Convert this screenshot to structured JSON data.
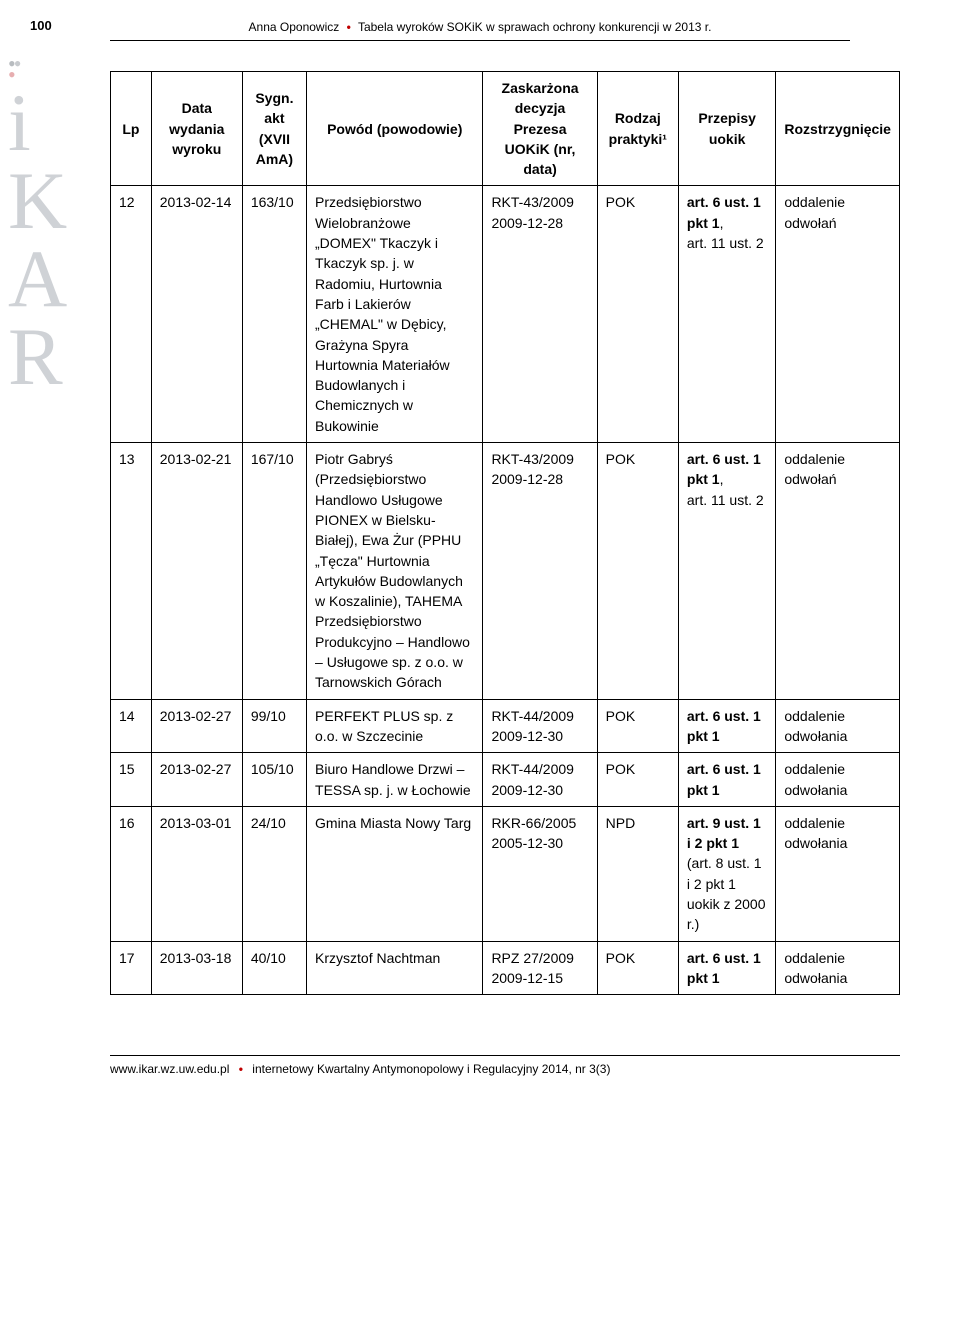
{
  "page_number": "100",
  "header_author": "Anna Oponowicz",
  "header_title": "Tabela wyroków SOKiK w sprawach ochrony konkurencji w 2013 r.",
  "footer_site": "www.ikar.wz.uw.edu.pl",
  "footer_journal": "internetowy Kwartalny Antymonopolowy i Regulacyjny 2014, nr 3(3)",
  "colors": {
    "accent_red": "#c00000",
    "logo_grey": "#cfd2d6",
    "text": "#000000",
    "background": "#ffffff",
    "border": "#000000"
  },
  "typography": {
    "body_font": "Arial",
    "body_size_pt": 10.5,
    "logo_font": "Georgia",
    "logo_size_pt": 62
  },
  "table": {
    "type": "table",
    "columns": [
      "Lp",
      "Data wydania wyroku",
      "Sygn. akt (XVII AmA)",
      "Powód (powodowie)",
      "Zaskarżona decyzja Prezesa UOKiK (nr, data)",
      "Rodzaj praktyki¹",
      "Przepisy uokik",
      "Rozstrzygnięcie"
    ],
    "rows": [
      {
        "lp": "12",
        "date": "2013-02-14",
        "sig": "163/10",
        "pow": "Przedsiębiorstwo Wielobranżowe „DOMEX\" Tkaczyk i Tkaczyk sp. j. w Radomiu, Hurtownia Farb i Lakierów „CHEMAL\" w Dębicy, Grażyna Spyra Hurtownia Materiałów Budowlanych i Chemicznych w Bukowinie",
        "dec_no": "RKT-43/2009",
        "dec_date": "2009-12-28",
        "rodzaj": "POK",
        "przepisy": "art. 6 ust. 1 pkt 1, art. 11 ust. 2",
        "rozstrz": "oddalenie odwołań"
      },
      {
        "lp": "13",
        "date": "2013-02-21",
        "sig": "167/10",
        "pow": "Piotr Gabryś (Przedsiębiorstwo Handlowo Usługowe PIONEX w Bielsku-Białej), Ewa Żur (PPHU „Tęcza\" Hurtownia Artykułów Budowlanych w Koszalinie), TAHEMA Przedsiębiorstwo Produkcyjno – Handlowo – Usługowe sp. z o.o. w Tarnowskich Górach",
        "dec_no": "RKT-43/2009",
        "dec_date": "2009-12-28",
        "rodzaj": "POK",
        "przepisy": "art. 6 ust. 1 pkt 1, art. 11 ust. 2",
        "rozstrz": "oddalenie odwołań"
      },
      {
        "lp": "14",
        "date": "2013-02-27",
        "sig": "99/10",
        "pow": "PERFEKT PLUS sp. z o.o. w Szczecinie",
        "dec_no": "RKT-44/2009",
        "dec_date": "2009-12-30",
        "rodzaj": "POK",
        "przepisy": "art. 6 ust. 1 pkt 1",
        "rozstrz": "oddalenie odwołania"
      },
      {
        "lp": "15",
        "date": "2013-02-27",
        "sig": "105/10",
        "pow": "Biuro Handlowe Drzwi – TESSA sp. j. w Łochowie",
        "dec_no": "RKT-44/2009",
        "dec_date": "2009-12-30",
        "rodzaj": "POK",
        "przepisy": "art. 6 ust. 1 pkt 1",
        "rozstrz": "oddalenie odwołania"
      },
      {
        "lp": "16",
        "date": "2013-03-01",
        "sig": "24/10",
        "pow": "Gmina Miasta Nowy Targ",
        "dec_no": "RKR-66/2005",
        "dec_date": "2005-12-30",
        "rodzaj": "NPD",
        "przepisy": "art. 9 ust. 1 i 2 pkt 1 (art. 8 ust. 1 i 2 pkt 1 uokik z 2000 r.)",
        "rozstrz": "oddalenie odwołania"
      },
      {
        "lp": "17",
        "date": "2013-03-18",
        "sig": "40/10",
        "pow": "Krzysztof Nachtman",
        "dec_no": "RPZ 27/2009",
        "dec_date": "2009-12-15",
        "rodzaj": "POK",
        "przepisy": "art. 6 ust. 1 pkt 1",
        "rozstrz": "oddalenie odwołania"
      }
    ]
  }
}
